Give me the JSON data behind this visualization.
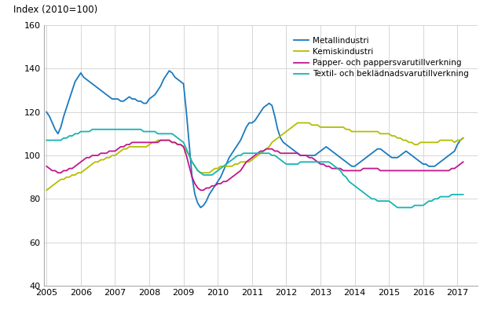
{
  "title": "Index (2010=100)",
  "ylim": [
    40,
    160
  ],
  "yticks": [
    40,
    60,
    80,
    100,
    120,
    140,
    160
  ],
  "xlim": [
    2004.92,
    2017.58
  ],
  "xticks": [
    2005,
    2006,
    2007,
    2008,
    2009,
    2010,
    2011,
    2012,
    2013,
    2014,
    2015,
    2016,
    2017
  ],
  "legend_labels": [
    "Metallindustri",
    "Kemiskindustri",
    "Papper- och pappersvarutillverkning",
    "Textil- och beklädnadsvarutillverkning"
  ],
  "colors": [
    "#1a7abf",
    "#b5bd00",
    "#c0178c",
    "#17b3b3"
  ],
  "linewidth": 1.3,
  "grid_color": "#d0d0d0",
  "background_color": "#ffffff",
  "metallindustri": [
    120,
    118,
    115,
    112,
    110,
    113,
    118,
    122,
    126,
    130,
    134,
    136,
    138,
    136,
    135,
    134,
    133,
    132,
    131,
    130,
    129,
    128,
    127,
    126,
    126,
    126,
    125,
    125,
    126,
    127,
    126,
    126,
    125,
    125,
    124,
    124,
    126,
    127,
    128,
    130,
    132,
    135,
    137,
    139,
    138,
    136,
    135,
    134,
    133,
    120,
    105,
    90,
    82,
    78,
    76,
    77,
    79,
    82,
    84,
    86,
    88,
    90,
    93,
    96,
    99,
    101,
    103,
    105,
    107,
    110,
    113,
    115,
    115,
    116,
    118,
    120,
    122,
    123,
    124,
    123,
    118,
    112,
    108,
    106,
    105,
    104,
    103,
    102,
    101,
    100,
    100,
    100,
    100,
    100,
    100,
    101,
    102,
    103,
    104,
    103,
    102,
    101,
    100,
    99,
    98,
    97,
    96,
    95,
    95,
    96,
    97,
    98,
    99,
    100,
    101,
    102,
    103,
    103,
    102,
    101,
    100,
    99,
    99,
    99,
    100,
    101,
    102,
    101,
    100,
    99,
    98,
    97,
    96,
    96,
    95,
    95,
    95,
    96,
    97,
    98,
    99,
    100,
    101,
    102,
    105,
    107,
    108
  ],
  "kemiskindustri": [
    84,
    85,
    86,
    87,
    88,
    89,
    89,
    90,
    90,
    91,
    91,
    92,
    92,
    93,
    94,
    95,
    96,
    97,
    97,
    98,
    98,
    99,
    99,
    100,
    100,
    101,
    102,
    103,
    103,
    104,
    104,
    104,
    104,
    104,
    104,
    104,
    105,
    106,
    106,
    107,
    107,
    107,
    107,
    107,
    106,
    106,
    105,
    105,
    104,
    102,
    100,
    97,
    95,
    93,
    92,
    92,
    92,
    92,
    93,
    94,
    94,
    95,
    95,
    95,
    95,
    95,
    96,
    96,
    97,
    97,
    97,
    97,
    98,
    99,
    100,
    101,
    102,
    103,
    104,
    106,
    107,
    108,
    109,
    110,
    111,
    112,
    113,
    114,
    115,
    115,
    115,
    115,
    115,
    114,
    114,
    114,
    113,
    113,
    113,
    113,
    113,
    113,
    113,
    113,
    113,
    112,
    112,
    111,
    111,
    111,
    111,
    111,
    111,
    111,
    111,
    111,
    111,
    110,
    110,
    110,
    110,
    109,
    109,
    108,
    108,
    107,
    107,
    106,
    106,
    105,
    105,
    106,
    106,
    106,
    106,
    106,
    106,
    106,
    107,
    107,
    107,
    107,
    107,
    106,
    107,
    107,
    108
  ],
  "papper": [
    95,
    94,
    93,
    93,
    92,
    92,
    93,
    93,
    94,
    94,
    95,
    96,
    97,
    98,
    99,
    99,
    100,
    100,
    100,
    101,
    101,
    101,
    102,
    102,
    102,
    103,
    104,
    104,
    105,
    105,
    106,
    106,
    106,
    106,
    106,
    106,
    106,
    106,
    106,
    106,
    107,
    107,
    107,
    107,
    106,
    106,
    105,
    105,
    104,
    100,
    95,
    90,
    87,
    85,
    84,
    84,
    85,
    85,
    86,
    86,
    87,
    87,
    88,
    88,
    89,
    90,
    91,
    92,
    93,
    95,
    97,
    98,
    99,
    100,
    101,
    102,
    102,
    103,
    103,
    103,
    102,
    102,
    101,
    101,
    101,
    101,
    101,
    101,
    101,
    100,
    100,
    100,
    99,
    99,
    98,
    97,
    96,
    96,
    95,
    95,
    94,
    94,
    94,
    94,
    93,
    93,
    93,
    93,
    93,
    93,
    93,
    94,
    94,
    94,
    94,
    94,
    94,
    93,
    93,
    93,
    93,
    93,
    93,
    93,
    93,
    93,
    93,
    93,
    93,
    93,
    93,
    93,
    93,
    93,
    93,
    93,
    93,
    93,
    93,
    93,
    93,
    93,
    94,
    94,
    95,
    96,
    97
  ],
  "textil": [
    107,
    107,
    107,
    107,
    107,
    107,
    108,
    108,
    109,
    109,
    110,
    110,
    111,
    111,
    111,
    111,
    112,
    112,
    112,
    112,
    112,
    112,
    112,
    112,
    112,
    112,
    112,
    112,
    112,
    112,
    112,
    112,
    112,
    112,
    111,
    111,
    111,
    111,
    111,
    110,
    110,
    110,
    110,
    110,
    110,
    109,
    108,
    107,
    106,
    103,
    100,
    97,
    95,
    93,
    92,
    91,
    91,
    91,
    91,
    92,
    93,
    94,
    95,
    96,
    97,
    98,
    99,
    100,
    100,
    101,
    101,
    101,
    101,
    101,
    101,
    101,
    101,
    101,
    101,
    100,
    100,
    99,
    98,
    97,
    96,
    96,
    96,
    96,
    96,
    97,
    97,
    97,
    97,
    97,
    97,
    97,
    97,
    97,
    97,
    97,
    96,
    95,
    94,
    93,
    91,
    90,
    88,
    87,
    86,
    85,
    84,
    83,
    82,
    81,
    80,
    80,
    79,
    79,
    79,
    79,
    79,
    78,
    77,
    76,
    76,
    76,
    76,
    76,
    76,
    77,
    77,
    77,
    77,
    78,
    79,
    79,
    80,
    80,
    81,
    81,
    81,
    81,
    82,
    82,
    82,
    82,
    82
  ]
}
